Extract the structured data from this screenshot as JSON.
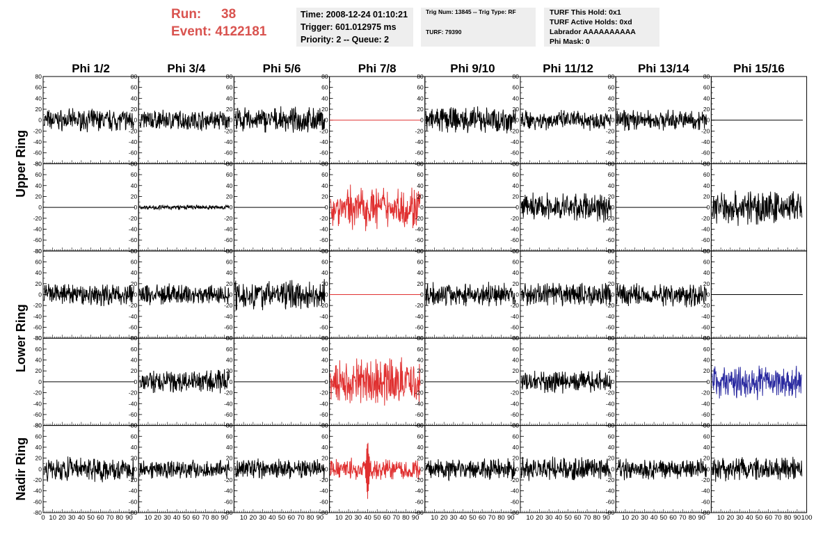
{
  "header": {
    "run_label": "Run:",
    "run_value": "38",
    "event_label": "Event:",
    "event_value": "4122181",
    "time": "Time: 2008-12-24 01:10:21",
    "trigger": "Trigger: 601.012975 ms",
    "priority": "Priority: 2 -- Queue: 2",
    "trig_num": "Trig Num: 13845 -- Trig Type: RF",
    "turf": "TURF: 79390",
    "turf_this_hold": "TURF This Hold: 0x1",
    "turf_active_holds": "TURF Active Holds: 0xd",
    "labrador": "Labrador AAAAAAAAAA",
    "phi_mask": "Phi Mask: 0"
  },
  "colors": {
    "run_text": "#d9534f",
    "trace_default": "#000000",
    "trace_triggered": "#e03030",
    "trace_special": "#2a2aa0",
    "info_background": "#eeeeee"
  },
  "chart_data": {
    "type": "line",
    "columns": [
      "Phi 1/2",
      "Phi 3/4",
      "Phi 5/6",
      "Phi 7/8",
      "Phi 9/10",
      "Phi 11/12",
      "Phi 13/14",
      "Phi 15/16"
    ],
    "ring_labels": [
      "Upper Ring",
      "Lower Ring",
      "Nadir Ring"
    ],
    "xlim": [
      0,
      100
    ],
    "ylim": [
      -80,
      80
    ],
    "x_ticks": [
      0,
      10,
      20,
      30,
      40,
      50,
      60,
      70,
      80,
      90,
      100
    ],
    "x_tick_labels": [
      "0",
      "10",
      "20",
      "30",
      "40",
      "50",
      "60",
      "70",
      "80",
      "90",
      "100"
    ],
    "y_ticks": [
      80,
      60,
      40,
      20,
      0,
      -20,
      -40,
      -60,
      -80
    ],
    "y_tick_labels": [
      "80",
      "60",
      "40",
      "20",
      "0",
      "-20",
      "-40",
      "-60",
      "-80"
    ],
    "rows": [
      {
        "ring": "Upper Ring",
        "panels": [
          {
            "kind": "noise",
            "amplitude": 14,
            "color": "trace_default"
          },
          {
            "kind": "noise",
            "amplitude": 13,
            "color": "trace_default"
          },
          {
            "kind": "noise",
            "amplitude": 16,
            "color": "trace_default"
          },
          {
            "kind": "flat",
            "amplitude": 0,
            "color": "trace_triggered"
          },
          {
            "kind": "noise",
            "amplitude": 17,
            "color": "trace_default"
          },
          {
            "kind": "noise",
            "amplitude": 13,
            "color": "trace_default"
          },
          {
            "kind": "noise",
            "amplitude": 13,
            "color": "trace_default"
          },
          {
            "kind": "flat",
            "amplitude": 0,
            "color": "trace_default"
          }
        ]
      },
      {
        "ring": "Upper Ring",
        "panels": [
          {
            "kind": "flat",
            "amplitude": 0,
            "color": "trace_default"
          },
          {
            "kind": "noise",
            "amplitude": 3,
            "color": "trace_default"
          },
          {
            "kind": "flat",
            "amplitude": 0,
            "color": "trace_default"
          },
          {
            "kind": "noise",
            "amplitude": 28,
            "color": "trace_triggered"
          },
          {
            "kind": "flat",
            "amplitude": 0,
            "color": "trace_default"
          },
          {
            "kind": "noise",
            "amplitude": 18,
            "color": "trace_default"
          },
          {
            "kind": "flat",
            "amplitude": 0,
            "color": "trace_default"
          },
          {
            "kind": "noise",
            "amplitude": 22,
            "color": "trace_default"
          }
        ]
      },
      {
        "ring": "Lower Ring",
        "panels": [
          {
            "kind": "noise",
            "amplitude": 15,
            "color": "trace_default"
          },
          {
            "kind": "noise",
            "amplitude": 14,
            "color": "trace_default"
          },
          {
            "kind": "noise",
            "amplitude": 19,
            "color": "trace_default"
          },
          {
            "kind": "flat",
            "amplitude": 0,
            "color": "trace_triggered"
          },
          {
            "kind": "noise",
            "amplitude": 15,
            "color": "trace_default"
          },
          {
            "kind": "noise",
            "amplitude": 15,
            "color": "trace_default"
          },
          {
            "kind": "noise",
            "amplitude": 15,
            "color": "trace_default"
          },
          {
            "kind": "flat",
            "amplitude": 0,
            "color": "trace_default"
          }
        ]
      },
      {
        "ring": "Lower Ring",
        "panels": [
          {
            "kind": "flat",
            "amplitude": 0,
            "color": "trace_default"
          },
          {
            "kind": "noise",
            "amplitude": 15,
            "color": "trace_default"
          },
          {
            "kind": "flat",
            "amplitude": 0,
            "color": "trace_default"
          },
          {
            "kind": "noise",
            "amplitude": 30,
            "color": "trace_triggered"
          },
          {
            "kind": "flat",
            "amplitude": 0,
            "color": "trace_default"
          },
          {
            "kind": "noise",
            "amplitude": 14,
            "color": "trace_default"
          },
          {
            "kind": "flat",
            "amplitude": 0,
            "color": "trace_default"
          },
          {
            "kind": "noise",
            "amplitude": 22,
            "color": "trace_special"
          }
        ]
      },
      {
        "ring": "Nadir Ring",
        "panels": [
          {
            "kind": "noise",
            "amplitude": 16,
            "color": "trace_default"
          },
          {
            "kind": "noise",
            "amplitude": 12,
            "color": "trace_default"
          },
          {
            "kind": "noise",
            "amplitude": 13,
            "color": "trace_default"
          },
          {
            "kind": "pulse",
            "amplitude": 14,
            "peak": 55,
            "color": "trace_triggered"
          },
          {
            "kind": "noise",
            "amplitude": 14,
            "color": "trace_default"
          },
          {
            "kind": "noise",
            "amplitude": 15,
            "color": "trace_default"
          },
          {
            "kind": "noise",
            "amplitude": 13,
            "color": "trace_default"
          },
          {
            "kind": "noise",
            "amplitude": 15,
            "color": "trace_default"
          }
        ]
      }
    ]
  }
}
